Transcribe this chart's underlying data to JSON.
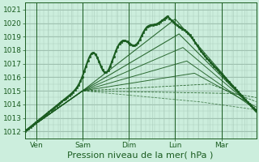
{
  "bg_color": "#cceedd",
  "grid_color_minor": "#aaccbb",
  "grid_color_major": "#99bbaa",
  "line_color": "#1a5c20",
  "xlabel": "Pression niveau de la mer( hPa )",
  "xlabel_fontsize": 8,
  "tick_labels_x": [
    "Ven",
    "Sam",
    "Dim",
    "Lun",
    "Mar"
  ],
  "ylim": [
    1011.5,
    1021.5
  ],
  "xlim": [
    0,
    120
  ],
  "yticks": [
    1012,
    1013,
    1014,
    1015,
    1016,
    1017,
    1018,
    1019,
    1020,
    1021
  ],
  "tick_fontsize": 6.5,
  "day_positions": [
    6,
    30,
    54,
    78,
    102
  ],
  "day_tick_positions": [
    6,
    30,
    54,
    78,
    102
  ]
}
